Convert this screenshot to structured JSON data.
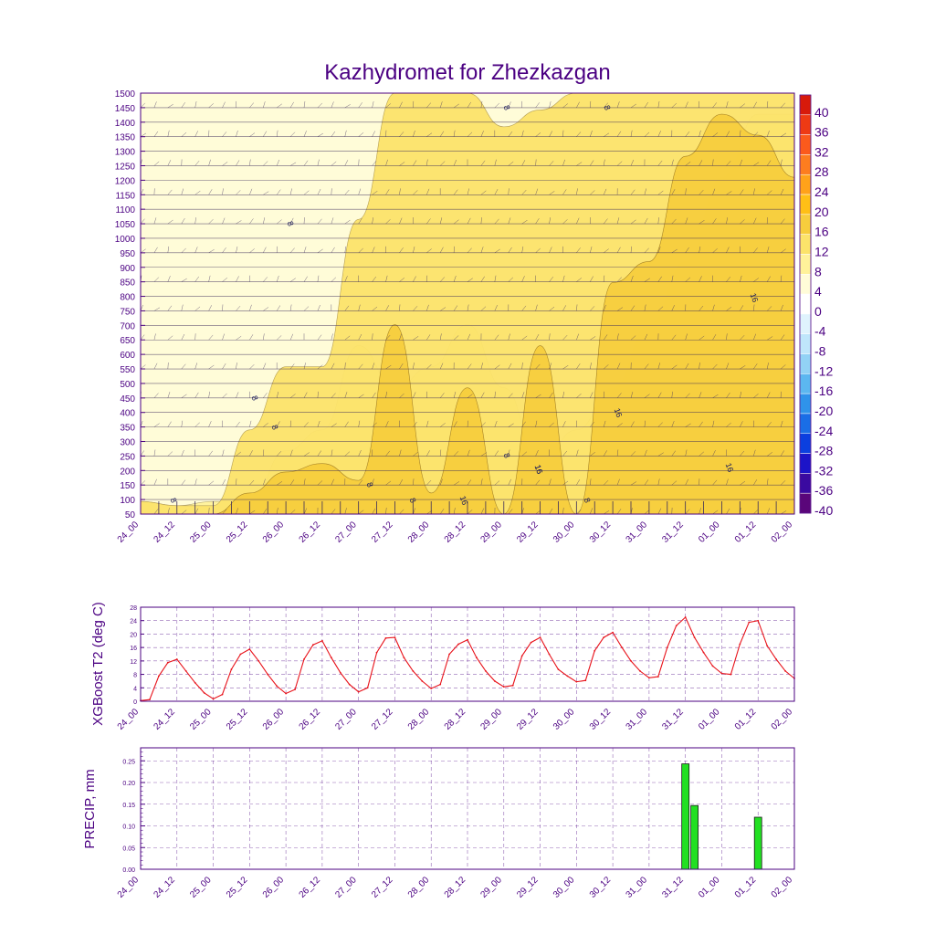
{
  "chart_data": [
    {
      "type": "heatmap",
      "title": "Kazhydromet for Zhezkazgan",
      "xlabel": "",
      "ylabel": "",
      "x_ticks": [
        "24_00",
        "24_12",
        "25_00",
        "25_12",
        "26_00",
        "26_12",
        "27_00",
        "27_12",
        "28_00",
        "28_12",
        "29_00",
        "29_12",
        "30_00",
        "30_12",
        "31_00",
        "31_12",
        "01_00",
        "01_12",
        "02_00"
      ],
      "y_ticks": [
        50,
        100,
        150,
        200,
        250,
        300,
        350,
        400,
        450,
        500,
        550,
        600,
        650,
        700,
        750,
        800,
        850,
        900,
        950,
        1000,
        1050,
        1100,
        1150,
        1200,
        1250,
        1300,
        1350,
        1400,
        1450,
        1500
      ],
      "ylim": [
        50,
        1500
      ],
      "colorbar_labels": [
        "40",
        "36",
        "32",
        "28",
        "24",
        "20",
        "16",
        "12",
        "8",
        "4",
        "0",
        "-4",
        "-8",
        "-12",
        "-16",
        "-20",
        "-24",
        "-28",
        "-32",
        "-36",
        "-40"
      ],
      "colorbar_colors": [
        "#d71a0b",
        "#ee3a14",
        "#fb5a1c",
        "#fd7d1f",
        "#ffa21a",
        "#ffbf16",
        "#f7cd3d",
        "#fce36a",
        "#fff29a",
        "#fffcd8",
        "#ffffff",
        "#dff3fd",
        "#bfe6fb",
        "#92d2f5",
        "#5cb7f0",
        "#2f93ea",
        "#1a6ee6",
        "#0b3fdf",
        "#1c14c8",
        "#3a0aa0",
        "#5a067a"
      ],
      "contour_labels": [
        "8",
        "8",
        "8",
        "8",
        "8",
        "8",
        "8",
        "8",
        "8",
        "8",
        "16",
        "16",
        "16",
        "16",
        "16",
        "16"
      ],
      "fill_bands": [
        {
          "level": 8,
          "profile": [
            3,
            2,
            3,
            3,
            15,
            20,
            40,
            30,
            35,
            45,
            30,
            12,
            20,
            30,
            45,
            60,
            80,
            95,
            95
          ]
        },
        {
          "level": 12,
          "profile": [
            3,
            2,
            2,
            20,
            35,
            35,
            70,
            100,
            100,
            100,
            92,
            96,
            100,
            100,
            100,
            100,
            100,
            100,
            100
          ]
        },
        {
          "level": 16,
          "profile": [
            0,
            0,
            0,
            5,
            10,
            12,
            8,
            45,
            5,
            30,
            0,
            40,
            0,
            55,
            60,
            85,
            95,
            90,
            80
          ]
        }
      ]
    },
    {
      "type": "line",
      "title": "",
      "xlabel": "",
      "ylabel": "XGBoost T2 (deg C)",
      "x_ticks": [
        "24_00",
        "24_12",
        "25_00",
        "25_12",
        "26_00",
        "26_12",
        "27_00",
        "27_12",
        "28_00",
        "28_12",
        "29_00",
        "29_12",
        "30_00",
        "30_12",
        "31_00",
        "31_12",
        "01_00",
        "01_12",
        "02_00"
      ],
      "y_ticks": [
        0,
        4,
        8,
        12,
        16,
        20,
        24,
        28
      ],
      "ylim": [
        0,
        28
      ],
      "x_range_hours": [
        0,
        216
      ],
      "series": [
        {
          "name": "T2",
          "color": "#e8121a",
          "x": [
            0,
            3,
            6,
            9,
            12,
            15,
            18,
            21,
            24,
            27,
            30,
            33,
            36,
            39,
            42,
            45,
            48,
            51,
            54,
            57,
            60,
            63,
            66,
            69,
            72,
            75,
            78,
            81,
            84,
            87,
            90,
            93,
            96,
            99,
            102,
            105,
            108,
            111,
            114,
            117,
            120,
            123,
            126,
            129,
            132,
            135,
            138,
            141,
            144,
            147,
            150,
            153,
            156,
            159,
            162,
            165,
            168,
            171,
            174,
            177,
            180,
            183,
            186,
            189,
            192,
            195,
            198,
            201,
            204,
            207,
            210,
            213,
            216
          ],
          "values": [
            0.2,
            0.5,
            7.5,
            11.5,
            12.5,
            9.0,
            5.5,
            2.5,
            0.7,
            2.0,
            9.5,
            14.0,
            15.5,
            12.0,
            8.0,
            4.5,
            2.3,
            3.5,
            12.5,
            16.8,
            18.0,
            13.0,
            8.5,
            5.0,
            2.8,
            4.0,
            14.5,
            18.8,
            19.0,
            13.0,
            9.0,
            6.0,
            3.8,
            5.0,
            14.0,
            17.0,
            18.3,
            13.0,
            9.0,
            6.0,
            4.3,
            4.7,
            13.5,
            17.5,
            19.0,
            14.0,
            9.5,
            7.5,
            5.8,
            6.2,
            15.0,
            19.0,
            20.5,
            16.0,
            12.0,
            9.0,
            7.0,
            7.3,
            16.0,
            22.5,
            25.0,
            19.0,
            14.5,
            10.5,
            8.3,
            8.0,
            17.0,
            23.5,
            24.0,
            16.5,
            12.5,
            9.0,
            6.8
          ]
        }
      ]
    },
    {
      "type": "bar",
      "title": "",
      "xlabel": "",
      "ylabel": "PRECIP, mm",
      "x_ticks": [
        "24_00",
        "24_12",
        "25_00",
        "25_12",
        "26_00",
        "26_12",
        "27_00",
        "27_12",
        "28_00",
        "28_12",
        "29_00",
        "29_12",
        "30_00",
        "30_12",
        "31_00",
        "31_12",
        "01_00",
        "01_12",
        "02_00"
      ],
      "y_ticks": [
        "0.00",
        "0.05",
        "0.10",
        "0.15",
        "0.20",
        "0.25"
      ],
      "ylim": [
        0,
        0.28
      ],
      "x_range_hours": [
        0,
        216
      ],
      "bar_color": "#22e022",
      "bars": [
        {
          "hour": 180,
          "value": 0.243
        },
        {
          "hour": 183,
          "value": 0.147
        },
        {
          "hour": 204,
          "value": 0.12
        }
      ]
    }
  ]
}
